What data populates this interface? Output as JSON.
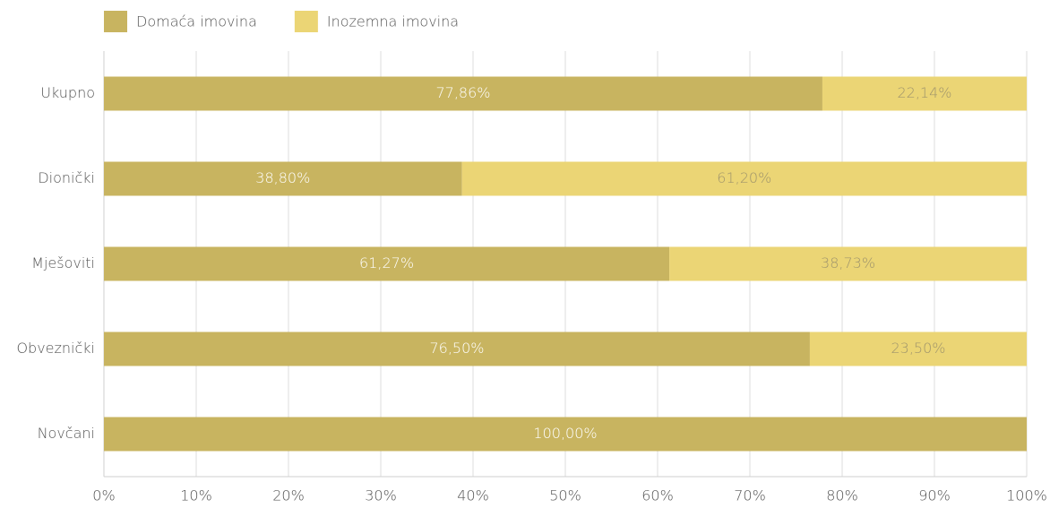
{
  "chart_data": {
    "type": "stacked_barh",
    "categories": [
      "Ukupno",
      "Dionički",
      "Mješoviti",
      "Obveznički",
      "Novčani"
    ],
    "series": [
      {
        "name": "Domaća imovina",
        "color": "#c8b460",
        "label_color": "#ffffff",
        "values": [
          77.86,
          38.8,
          61.27,
          76.5,
          100
        ],
        "value_labels": [
          "77,86%",
          "38,80%",
          "61,27%",
          "76,50%",
          "100,00%"
        ]
      },
      {
        "name": "Inozemna imovina",
        "color": "#ebd575",
        "label_color": "#a0956c",
        "values": [
          22.14,
          61.2,
          38.73,
          23.5,
          0
        ],
        "value_labels": [
          "22,14%",
          "61,20%",
          "38,73%",
          "23,50%",
          null
        ]
      }
    ],
    "xlim": [
      0,
      100
    ],
    "xticks": [
      {
        "value": 0,
        "label": "0%"
      },
      {
        "value": 10,
        "label": "10%"
      },
      {
        "value": 20,
        "label": "20%"
      },
      {
        "value": 30,
        "label": "30%"
      },
      {
        "value": 40,
        "label": "40%"
      },
      {
        "value": 50,
        "label": "50%"
      },
      {
        "value": 60,
        "label": "60%"
      },
      {
        "value": 70,
        "label": "70%"
      },
      {
        "value": 80,
        "label": "80%"
      },
      {
        "value": 90,
        "label": "90%"
      },
      {
        "value": 100,
        "label": "100%"
      }
    ],
    "grid": true,
    "legend": "top-left"
  }
}
